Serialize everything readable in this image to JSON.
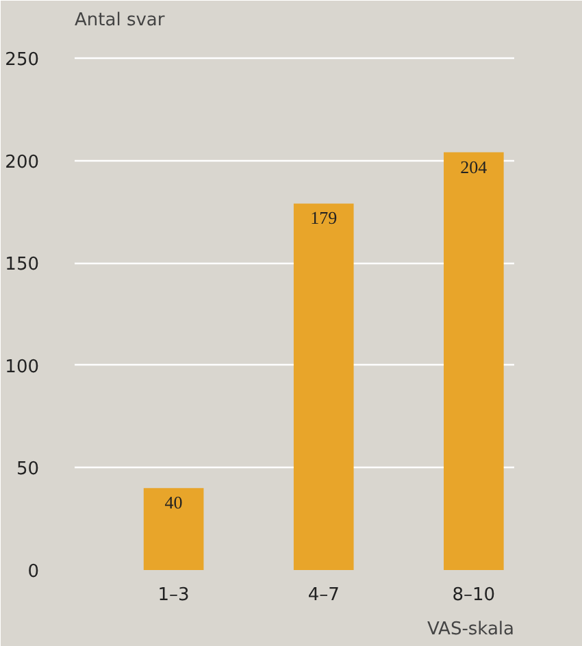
{
  "chart_data": {
    "type": "bar",
    "ylabel": "Antal svar",
    "xlabel": "VAS-skala",
    "categories": [
      "1–3",
      "4–7",
      "8–10"
    ],
    "values": [
      40,
      179,
      204
    ],
    "color": "#e8a52a",
    "ylim": [
      0,
      250
    ],
    "yticks": [
      0,
      50,
      100,
      150,
      200,
      250
    ],
    "grid": "y",
    "data_labels": true
  }
}
